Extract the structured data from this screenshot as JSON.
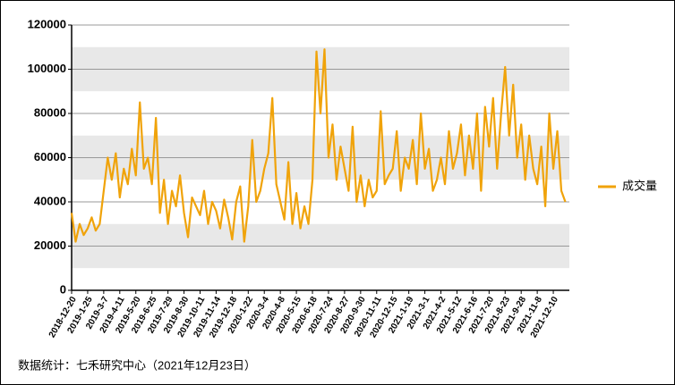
{
  "chart_data": {
    "type": "line",
    "source": "数据统计：七禾研究中心（2021年12月23日）",
    "categories": [
      "2018-12-20",
      null,
      null,
      null,
      "2019-1-25",
      null,
      null,
      null,
      "2019-3-7",
      null,
      null,
      null,
      "2019-4-11",
      null,
      null,
      null,
      "2019-5-20",
      null,
      null,
      null,
      "2019-6-25",
      null,
      null,
      null,
      "2019-7-29",
      null,
      null,
      null,
      "2019-8-30",
      null,
      null,
      null,
      "2019-10-11",
      null,
      null,
      null,
      "2019-11-14",
      null,
      null,
      null,
      "2019-12-18",
      null,
      null,
      null,
      "2020-1-22",
      null,
      null,
      null,
      "2020-3-4",
      null,
      null,
      null,
      "2020-4-8",
      null,
      null,
      null,
      "2020-5-15",
      null,
      null,
      null,
      "2020-6-18",
      null,
      null,
      null,
      "2020-7-24",
      null,
      null,
      null,
      "2020-8-27",
      null,
      null,
      null,
      "2020-9-30",
      null,
      null,
      null,
      "2020-11-11",
      null,
      null,
      null,
      "2020-12-15",
      null,
      null,
      null,
      "2021-1-19",
      null,
      null,
      null,
      "2021-3-1",
      null,
      null,
      null,
      "2021-4-2",
      null,
      null,
      null,
      "2021-5-12",
      null,
      null,
      null,
      "2021-6-16",
      null,
      null,
      null,
      "2021-7-20",
      null,
      null,
      null,
      "2021-8-23",
      null,
      null,
      null,
      "2021-9-28",
      null,
      null,
      null,
      "2021-11-8",
      null,
      null,
      null,
      "2021-12-10",
      null,
      null,
      null
    ],
    "series": [
      {
        "name": "成交量",
        "color": "#f0a30a",
        "values": [
          35000,
          22000,
          30000,
          25000,
          28000,
          33000,
          27000,
          30000,
          45000,
          60000,
          50000,
          62000,
          42000,
          55000,
          48000,
          64000,
          52000,
          85000,
          55000,
          60000,
          48000,
          78000,
          35000,
          50000,
          30000,
          45000,
          38000,
          52000,
          35000,
          24000,
          42000,
          38000,
          34000,
          45000,
          30000,
          40000,
          36000,
          28000,
          41000,
          33000,
          23000,
          40000,
          47000,
          22000,
          38000,
          68000,
          40000,
          45000,
          55000,
          62000,
          87000,
          48000,
          40000,
          32000,
          58000,
          30000,
          44000,
          28000,
          38000,
          30000,
          50000,
          108000,
          80000,
          109000,
          60000,
          75000,
          50000,
          65000,
          55000,
          45000,
          74000,
          40000,
          52000,
          38000,
          50000,
          42000,
          45000,
          81000,
          48000,
          52000,
          55000,
          72000,
          45000,
          60000,
          55000,
          68000,
          48000,
          80000,
          55000,
          64000,
          45000,
          50000,
          60000,
          48000,
          72000,
          55000,
          62000,
          75000,
          52000,
          70000,
          55000,
          80000,
          45000,
          83000,
          65000,
          87000,
          55000,
          80000,
          101000,
          70000,
          93000,
          60000,
          75000,
          50000,
          70000,
          55000,
          48000,
          65000,
          38000,
          80000,
          55000,
          72000,
          45000,
          40000
        ]
      }
    ],
    "ylim": [
      0,
      120000
    ],
    "yticks": [
      0,
      20000,
      40000,
      60000,
      80000,
      100000,
      120000
    ],
    "grid": true,
    "legend": "right"
  }
}
